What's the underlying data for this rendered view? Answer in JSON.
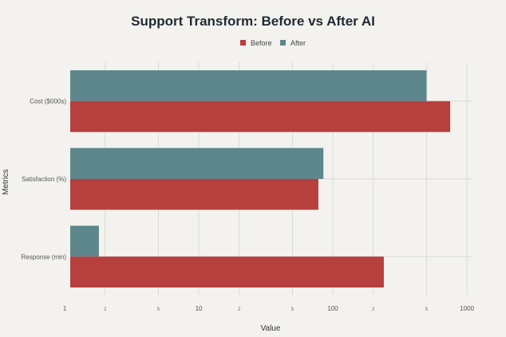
{
  "chart_data": {
    "type": "bar",
    "orientation": "horizontal",
    "title": "Support Transform: Before vs After AI",
    "xlabel": "Value",
    "ylabel": "Metrics",
    "x_scale": "log",
    "xlim": [
      1.1,
      1100
    ],
    "grid": true,
    "legend_position": "top-center",
    "categories": [
      "Cost ($000s)",
      "Satisfaction (%)",
      "Response (min)"
    ],
    "series": [
      {
        "name": "Before",
        "color": "#b6403d",
        "values": [
          750,
          78,
          240
        ]
      },
      {
        "name": "After",
        "color": "#5d878c",
        "values": [
          500,
          85,
          1.8
        ]
      }
    ],
    "major_ticks": [
      {
        "value": 1,
        "label": "1"
      },
      {
        "value": 10,
        "label": "10"
      },
      {
        "value": 100,
        "label": "100"
      },
      {
        "value": 1000,
        "label": "1000"
      }
    ],
    "minor_ticks": [
      {
        "value": 2,
        "label": "2"
      },
      {
        "value": 5,
        "label": "5"
      },
      {
        "value": 20,
        "label": "2"
      },
      {
        "value": 50,
        "label": "5"
      },
      {
        "value": 200,
        "label": "2"
      },
      {
        "value": 500,
        "label": "5"
      }
    ]
  }
}
